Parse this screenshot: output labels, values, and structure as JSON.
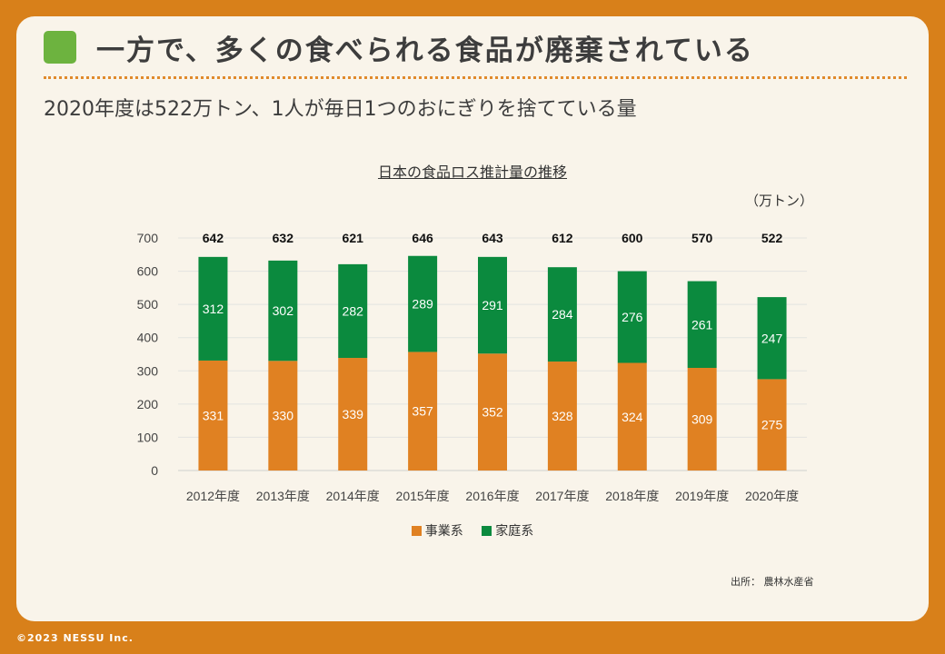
{
  "header": {
    "title": "一方で、多くの食べられる食品が廃棄されている",
    "subtitle": "2020年度は522万トン、1人が毎日1つのおにぎりを捨てている量"
  },
  "chart_data": {
    "type": "bar",
    "stacked": true,
    "title": "日本の食品ロス推計量の推移",
    "unit": "（万トン）",
    "categories": [
      "2012年度",
      "2013年度",
      "2014年度",
      "2015年度",
      "2016年度",
      "2017年度",
      "2018年度",
      "2019年度",
      "2020年度"
    ],
    "series": [
      {
        "name": "事業系",
        "color": "#e08122",
        "values": [
          331,
          330,
          339,
          357,
          352,
          328,
          324,
          309,
          275
        ]
      },
      {
        "name": "家庭系",
        "color": "#0b8a3e",
        "values": [
          312,
          302,
          282,
          289,
          291,
          284,
          276,
          261,
          247
        ]
      }
    ],
    "totals": [
      642,
      632,
      621,
      646,
      643,
      612,
      600,
      570,
      522
    ],
    "y_ticks": [
      0,
      100,
      200,
      300,
      400,
      500,
      600,
      700
    ],
    "ylim": [
      0,
      700
    ]
  },
  "source": "出所： 農林水産省",
  "copyright": "©2023 NESSU Inc."
}
